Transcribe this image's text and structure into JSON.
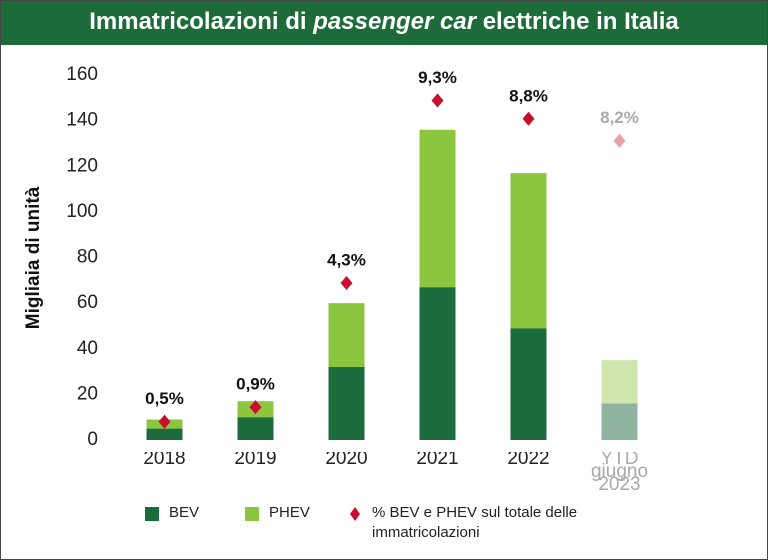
{
  "chart_data": {
    "type": "bar",
    "title": [
      "Immatricolazioni di ",
      "passenger car",
      " elettriche in Italia"
    ],
    "y_label": "Migliaia di unità",
    "categories": [
      "2018",
      "2019",
      "2020",
      "2021",
      "2022",
      "YTD giugno 2023"
    ],
    "series": [
      {
        "name": "BEV",
        "color": "#1b6b3c",
        "colors": [
          "#1b6b3c",
          "#1b6b3c",
          "#1b6b3c",
          "#1b6b3c",
          "#1b6b3c",
          "#8fb5a0"
        ],
        "values": [
          5,
          10,
          32,
          67,
          49,
          16
        ]
      },
      {
        "name": "PHEV",
        "color": "#8cc63f",
        "colors": [
          "#8cc63f",
          "#8cc63f",
          "#8cc63f",
          "#8cc63f",
          "#8cc63f",
          "#cfe6ae"
        ],
        "values": [
          4,
          7,
          28,
          69,
          68,
          19
        ]
      },
      {
        "name": "% BEV e PHEV sul totale delle immatricolazioni",
        "type": "scatter",
        "axis": "y2",
        "color": "#c8102e",
        "colors": [
          "#c8102e",
          "#c8102e",
          "#c8102e",
          "#c8102e",
          "#c8102e",
          "#e8a0a8"
        ],
        "label_colors": [
          "#111111",
          "#111111",
          "#111111",
          "#111111",
          "#111111",
          "#aaaaaa"
        ],
        "values": [
          0.5,
          0.9,
          4.3,
          9.3,
          8.8,
          8.2
        ],
        "value_labels": [
          "0,5%",
          "0,9%",
          "4,3%",
          "9,3%",
          "8,8%",
          "8,2%"
        ]
      }
    ],
    "ylim": [
      0,
      160
    ],
    "yticks": [
      0,
      20,
      40,
      60,
      80,
      100,
      120,
      140,
      160
    ],
    "y2lim": [
      0,
      10
    ],
    "stacked": true,
    "grid": false
  }
}
